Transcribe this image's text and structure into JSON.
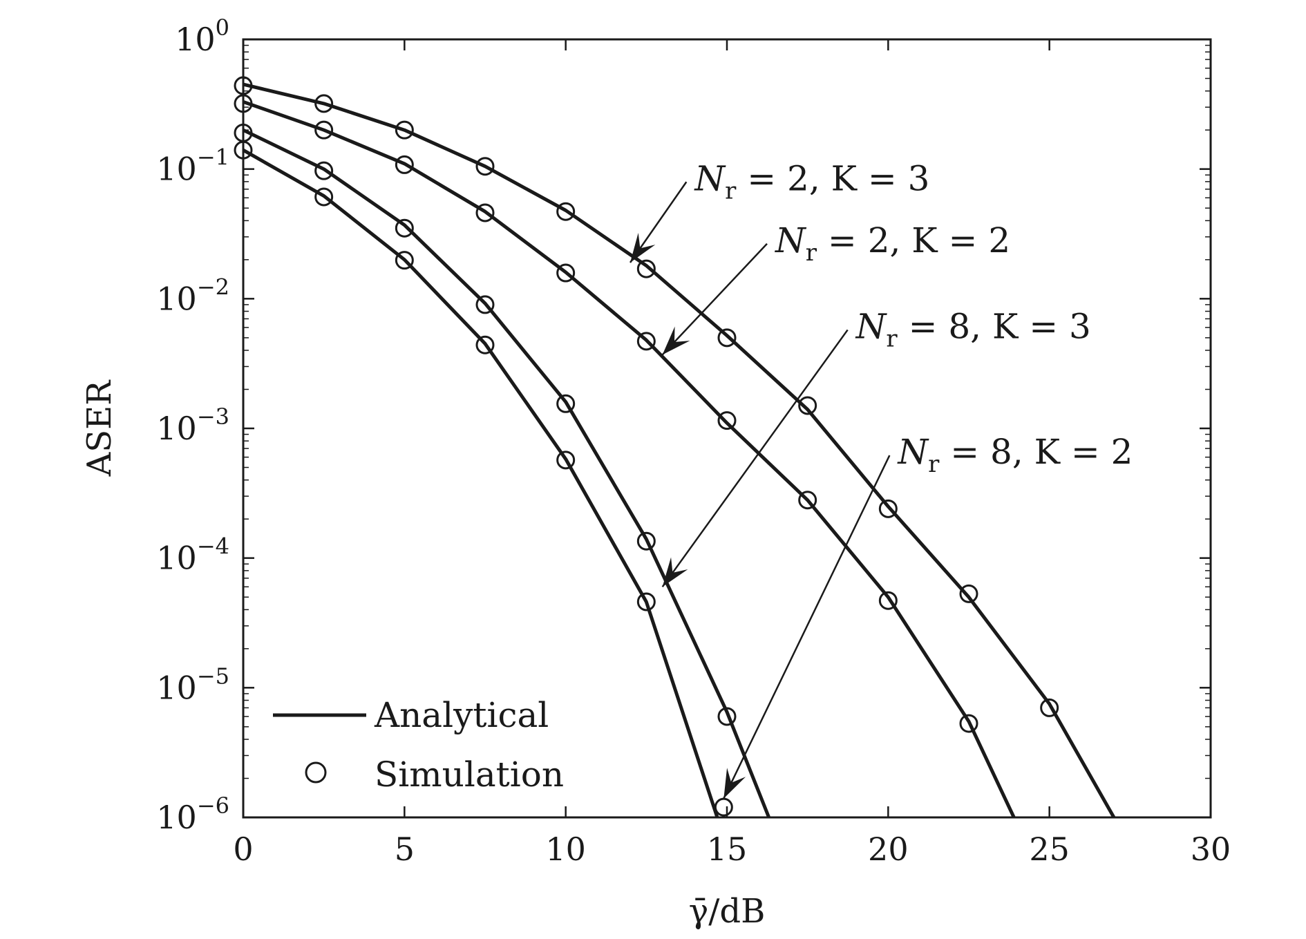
{
  "chart_data": {
    "type": "line",
    "xlabel": "γ̄/dB",
    "ylabel": "ASER",
    "xlim": [
      0,
      30
    ],
    "ylim": [
      1e-06,
      1
    ],
    "yscale": "log",
    "grid": false,
    "x_ticks": [
      0,
      5,
      10,
      15,
      20,
      25,
      30
    ],
    "x_tick_labels": [
      "0",
      "5",
      "10",
      "15",
      "20",
      "25",
      "30"
    ],
    "y_ticks": [
      1,
      0.1,
      0.01,
      0.001,
      0.0001,
      1e-05,
      1e-06
    ],
    "y_tick_labels": [
      {
        "base": "10",
        "exp": "0"
      },
      {
        "base": "10",
        "exp": "−1"
      },
      {
        "base": "10",
        "exp": "−2"
      },
      {
        "base": "10",
        "exp": "−3"
      },
      {
        "base": "10",
        "exp": "−4"
      },
      {
        "base": "10",
        "exp": "−5"
      },
      {
        "base": "10",
        "exp": "−6"
      }
    ],
    "legend": {
      "placement": "bottom-left",
      "entries": [
        {
          "label": "Analytical",
          "marker": "line"
        },
        {
          "label": "Simulation",
          "marker": "circle"
        }
      ]
    },
    "annotations": [
      {
        "main": "N",
        "sub": "r",
        "rest": " = 2,  K = 3",
        "pointer_x": 12.0,
        "pointer_y": 0.019,
        "text_x": 14,
        "text_y": 0.09
      },
      {
        "main": "N",
        "sub": "r",
        "rest": " = 2,  K = 2",
        "pointer_x": 13.0,
        "pointer_y": 0.0037,
        "text_x": 16.5,
        "text_y": 0.03
      },
      {
        "main": "N",
        "sub": "r",
        "rest": " = 8,  K = 3",
        "pointer_x": 13.0,
        "pointer_y": 6e-05,
        "text_x": 19,
        "text_y": 0.0065
      },
      {
        "main": "N",
        "sub": "r",
        "rest": " = 8,  K = 2",
        "pointer_x": 14.9,
        "pointer_y": 1.4e-06,
        "text_x": 20.3,
        "text_y": 0.0007
      }
    ],
    "series": [
      {
        "analytical": {
          "x": [
            0,
            2.5,
            5,
            7.5,
            10,
            12.5,
            15,
            17.5,
            20,
            22.5,
            25,
            27
          ],
          "y": [
            0.45,
            0.32,
            0.2,
            0.105,
            0.048,
            0.018,
            0.0052,
            0.0014,
            0.00025,
            5e-05,
            7.5e-06,
            1e-06
          ]
        },
        "simulation": {
          "x": [
            0,
            2.5,
            5,
            7.5,
            10,
            12.5,
            15,
            17.5,
            20,
            22.5,
            25
          ],
          "y": [
            0.44,
            0.32,
            0.2,
            0.105,
            0.047,
            0.017,
            0.005,
            0.0015,
            0.00024,
            5.3e-05,
            7e-06
          ]
        }
      },
      {
        "analytical": {
          "x": [
            0,
            2.5,
            5,
            7.5,
            10,
            12.5,
            15,
            17.5,
            20,
            22.5,
            23.9
          ],
          "y": [
            0.33,
            0.2,
            0.11,
            0.047,
            0.016,
            0.0048,
            0.0011,
            0.00028,
            5e-05,
            5.5e-06,
            1e-06
          ]
        },
        "simulation": {
          "x": [
            0,
            2.5,
            5,
            7.5,
            10,
            12.5,
            15,
            17.5,
            20,
            22.5
          ],
          "y": [
            0.32,
            0.2,
            0.108,
            0.046,
            0.0158,
            0.0047,
            0.00115,
            0.00028,
            4.7e-05,
            5.3e-06
          ]
        }
      },
      {
        "analytical": {
          "x": [
            0,
            2.5,
            5,
            7.5,
            10,
            12.5,
            15,
            16.3
          ],
          "y": [
            0.2,
            0.1,
            0.037,
            0.0092,
            0.0016,
            0.00014,
            6.5e-06,
            1e-06
          ]
        },
        "simulation": {
          "x": [
            0,
            2.5,
            5,
            7.5,
            10,
            12.5,
            15
          ],
          "y": [
            0.19,
            0.097,
            0.035,
            0.009,
            0.00155,
            0.000135,
            6e-06
          ]
        }
      },
      {
        "analytical": {
          "x": [
            0,
            2.5,
            5,
            7.5,
            10,
            12.5,
            14.7
          ],
          "y": [
            0.14,
            0.062,
            0.02,
            0.0045,
            0.00058,
            4.6e-05,
            1e-06
          ]
        },
        "simulation": {
          "x": [
            0,
            2.5,
            5,
            7.5,
            10,
            12.5,
            14.9
          ],
          "y": [
            0.14,
            0.061,
            0.0198,
            0.0044,
            0.00057,
            4.6e-05,
            1.2e-06
          ]
        }
      }
    ]
  }
}
